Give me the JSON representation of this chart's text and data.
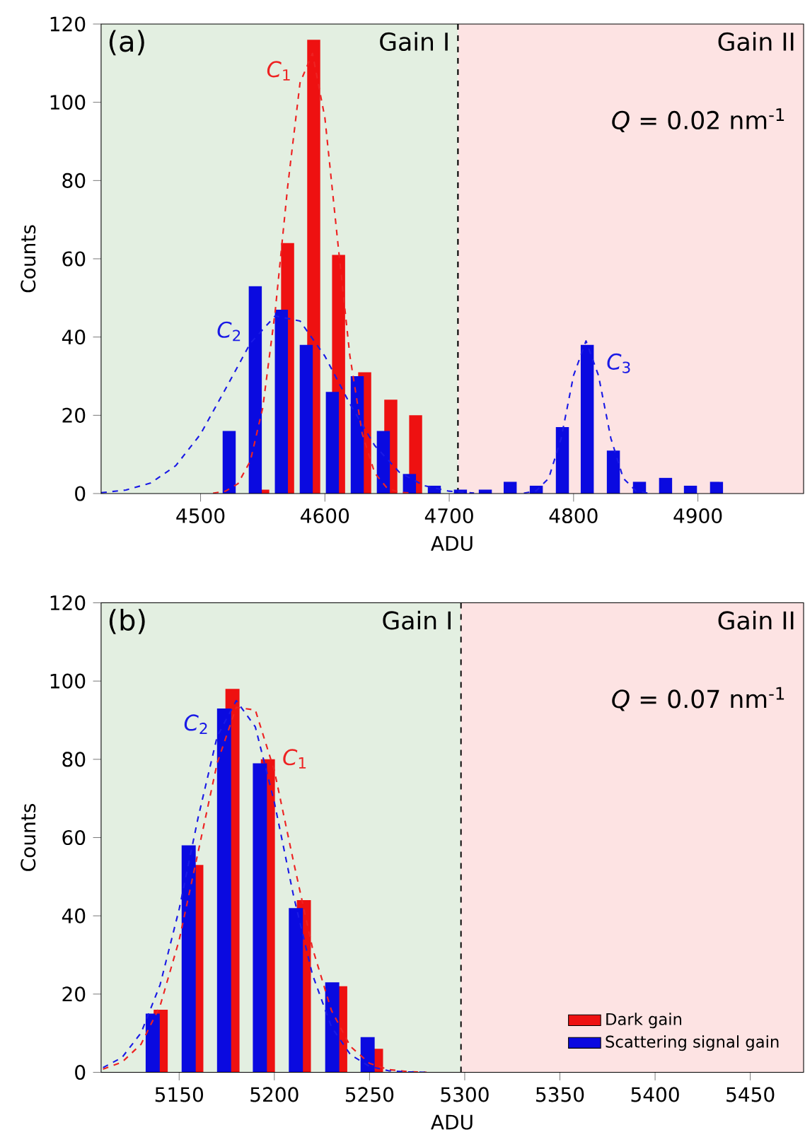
{
  "chart_data": [
    {
      "type": "bar",
      "xlabel": "ADU",
      "ylabel": "Counts",
      "xlim": [
        4420,
        4985
      ],
      "ylim": [
        0,
        120
      ],
      "xticks": [
        4500,
        4600,
        4700,
        4800,
        4900
      ],
      "yticks": [
        0,
        20,
        40,
        60,
        80,
        100,
        120
      ],
      "bands": [
        {
          "axis": "x",
          "from": 4420,
          "to": 4707,
          "label": "Gain I",
          "color": "#e3efe1"
        },
        {
          "axis": "x",
          "from": 4707,
          "to": 4985,
          "label": "Gain II",
          "color": "#fde3e3"
        }
      ],
      "ref_lines": [
        {
          "axis": "x",
          "value": 4707,
          "color": "#000000",
          "line_style": "dashed"
        }
      ],
      "annotations": [
        "(a)",
        "*Q* = 0.02 nm$^{-1}$"
      ],
      "series": [
        {
          "color": "#ee1111",
          "x": [
            4550,
            4570,
            4591,
            4611,
            4632,
            4653,
            4673
          ],
          "values": [
            1,
            64,
            116,
            61,
            31,
            24,
            20
          ]
        },
        {
          "color": "#0a0ae0",
          "x": [
            4523,
            4544,
            4565,
            4585,
            4606,
            4626,
            4647,
            4668,
            4688,
            4709,
            4729,
            4749,
            4770,
            4791,
            4811,
            4832,
            4853,
            4874,
            4894,
            4915
          ],
          "values": [
            16,
            53,
            47,
            38,
            26,
            30,
            16,
            5,
            2,
            1,
            1,
            3,
            2,
            17,
            38,
            11,
            3,
            4,
            2,
            3
          ]
        },
        {
          "type": "line",
          "name": "*C*$_{1}$",
          "color": "#ee2222",
          "line_style": "dashed",
          "x": [
            4510,
            4520,
            4530,
            4540,
            4550,
            4560,
            4570,
            4580,
            4590,
            4600,
            4610,
            4620,
            4630,
            4640,
            4650,
            4660,
            4670
          ],
          "values": [
            0.1,
            0.6,
            2.5,
            8.3,
            21.9,
            46.5,
            78.3,
            105,
            112.5,
            96,
            65.3,
            35.4,
            15.3,
            5.3,
            1.4,
            0.3,
            0.1
          ]
        },
        {
          "type": "line",
          "name": "*C*$_{2}$",
          "color": "#1a1ae6",
          "line_style": "dashed",
          "x": [
            4420,
            4440,
            4460,
            4480,
            4500,
            4520,
            4540,
            4560,
            4580,
            4600,
            4620,
            4640,
            4660,
            4680,
            4700,
            4720
          ],
          "values": [
            0.2,
            0.9,
            2.7,
            7.1,
            15.2,
            26.7,
            38.4,
            45.4,
            44.1,
            35.1,
            23,
            12.3,
            5.4,
            2,
            0.6,
            0.1
          ]
        },
        {
          "type": "line",
          "name": "*C*$_{3}$",
          "color": "#1a1ae6",
          "line_style": "dashed",
          "x": [
            4760,
            4770,
            4780,
            4790,
            4800,
            4810,
            4820,
            4830,
            4840,
            4850,
            4860
          ],
          "values": [
            0.1,
            0.7,
            3.9,
            14.1,
            30.2,
            39,
            30.2,
            14.1,
            3.9,
            0.7,
            0.1
          ]
        }
      ]
    },
    {
      "type": "bar",
      "xlabel": "ADU",
      "ylabel": "Counts",
      "xlim": [
        5109,
        5478
      ],
      "ylim": [
        0,
        120
      ],
      "xticks": [
        5150,
        5200,
        5250,
        5300,
        5350,
        5400,
        5450
      ],
      "yticks": [
        0,
        20,
        40,
        60,
        80,
        100,
        120
      ],
      "legend": "bottom right",
      "bands": [
        {
          "axis": "x",
          "from": 5109,
          "to": 5298,
          "label": "Gain I",
          "color": "#e3efe1"
        },
        {
          "axis": "x",
          "from": 5298,
          "to": 5478,
          "label": "Gain II",
          "color": "#fde3e3"
        }
      ],
      "ref_lines": [
        {
          "axis": "x",
          "value": 5298,
          "color": "#000000",
          "line_style": "dashed"
        }
      ],
      "annotations": [
        "(b)",
        "*Q* = 0.07 nm$^{-1}$"
      ],
      "series": [
        {
          "name": "Dark gain",
          "color": "#ee1111",
          "x": [
            5140.3,
            5159,
            5178,
            5196.6,
            5215.5,
            5234.6,
            5253.4
          ],
          "values": [
            16,
            53,
            98,
            80,
            44,
            22,
            6
          ]
        },
        {
          "name": "Scattering signal gain",
          "color": "#0a0ae0",
          "x": [
            5136.1,
            5155,
            5173.6,
            5192.4,
            5211.3,
            5230.4,
            5249
          ],
          "values": [
            15,
            58,
            93,
            79,
            42,
            23,
            9
          ]
        },
        {
          "type": "line",
          "name": "*C*$_{1}$",
          "color": "#ee2222",
          "line_style": "dashed",
          "x": [
            5110,
            5120,
            5130,
            5140,
            5150,
            5160,
            5170,
            5180,
            5190,
            5200,
            5210,
            5220,
            5230,
            5240,
            5250,
            5260,
            5270,
            5280
          ],
          "values": [
            0.8,
            2.6,
            7.2,
            17,
            33.8,
            56.4,
            79.1,
            93.3,
            92.6,
            77.1,
            54,
            31.8,
            15.8,
            6.6,
            2.3,
            0.7,
            0.2,
            0
          ]
        },
        {
          "type": "line",
          "name": "*C*$_{2}$",
          "color": "#1a1ae6",
          "line_style": "dashed",
          "x": [
            5110,
            5120,
            5130,
            5140,
            5150,
            5160,
            5170,
            5180,
            5190,
            5200,
            5210,
            5220,
            5230,
            5240,
            5250,
            5260,
            5270,
            5280
          ],
          "values": [
            1.2,
            3.8,
            10.1,
            22.4,
            41.7,
            65.2,
            85.9,
            95,
            88.3,
            69,
            45.3,
            25,
            11.6,
            4.5,
            1.5,
            0.4,
            0.1,
            0
          ]
        }
      ]
    }
  ]
}
